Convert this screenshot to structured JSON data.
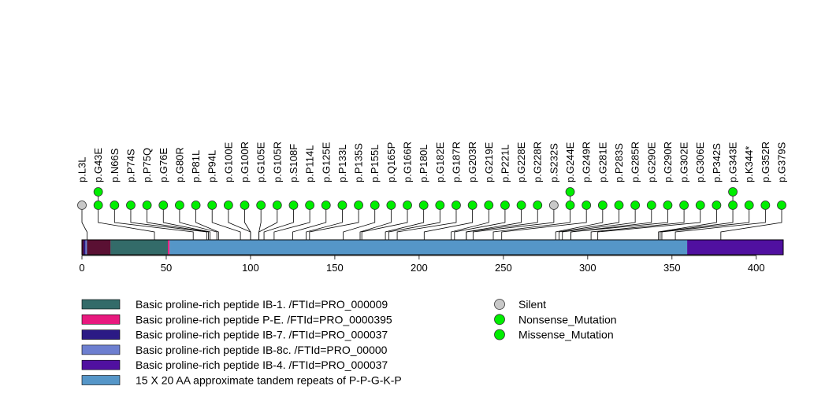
{
  "chart_data": {
    "type": "lollipop",
    "protein_length": 416,
    "axis": {
      "ticks": [
        0,
        50,
        100,
        150,
        200,
        250,
        300,
        350,
        400
      ],
      "xlim": [
        0,
        416
      ]
    },
    "mutation_types": [
      {
        "name": "Silent",
        "color": "#c8c8c8"
      },
      {
        "name": "Nonsense_Mutation",
        "color": "#00ee00"
      },
      {
        "name": "Missense_Mutation",
        "color": "#00ee00"
      }
    ],
    "mutations": [
      {
        "label": "p.L3L",
        "position": 3,
        "type": "Silent",
        "count": 1
      },
      {
        "label": "p.G43E",
        "position": 43,
        "type": "Missense_Mutation",
        "count": 2
      },
      {
        "label": "p.N66S",
        "position": 66,
        "type": "Missense_Mutation",
        "count": 1
      },
      {
        "label": "p.P74S",
        "position": 74,
        "type": "Missense_Mutation",
        "count": 1
      },
      {
        "label": "p.P75Q",
        "position": 75,
        "type": "Missense_Mutation",
        "count": 1
      },
      {
        "label": "p.G76E",
        "position": 76,
        "type": "Missense_Mutation",
        "count": 1
      },
      {
        "label": "p.G80R",
        "position": 80,
        "type": "Missense_Mutation",
        "count": 1
      },
      {
        "label": "p.P81L",
        "position": 81,
        "type": "Missense_Mutation",
        "count": 1
      },
      {
        "label": "p.P94L",
        "position": 94,
        "type": "Missense_Mutation",
        "count": 1
      },
      {
        "label": "p.G100E",
        "position": 100,
        "type": "Missense_Mutation",
        "count": 1
      },
      {
        "label": "p.G100R",
        "position": 100,
        "type": "Missense_Mutation",
        "count": 1
      },
      {
        "label": "p.G105E",
        "position": 105,
        "type": "Missense_Mutation",
        "count": 1
      },
      {
        "label": "p.G105R",
        "position": 105,
        "type": "Missense_Mutation",
        "count": 1
      },
      {
        "label": "p.S108F",
        "position": 108,
        "type": "Missense_Mutation",
        "count": 1
      },
      {
        "label": "p.P114L",
        "position": 114,
        "type": "Missense_Mutation",
        "count": 1
      },
      {
        "label": "p.G125E",
        "position": 125,
        "type": "Missense_Mutation",
        "count": 1
      },
      {
        "label": "p.P133L",
        "position": 133,
        "type": "Missense_Mutation",
        "count": 1
      },
      {
        "label": "p.P135S",
        "position": 135,
        "type": "Missense_Mutation",
        "count": 1
      },
      {
        "label": "p.P155L",
        "position": 155,
        "type": "Missense_Mutation",
        "count": 1
      },
      {
        "label": "p.Q165P",
        "position": 165,
        "type": "Missense_Mutation",
        "count": 1
      },
      {
        "label": "p.G166R",
        "position": 166,
        "type": "Missense_Mutation",
        "count": 1
      },
      {
        "label": "p.P180L",
        "position": 180,
        "type": "Missense_Mutation",
        "count": 1
      },
      {
        "label": "p.G182E",
        "position": 182,
        "type": "Missense_Mutation",
        "count": 1
      },
      {
        "label": "p.G187R",
        "position": 187,
        "type": "Missense_Mutation",
        "count": 1
      },
      {
        "label": "p.G203R",
        "position": 203,
        "type": "Missense_Mutation",
        "count": 1
      },
      {
        "label": "p.G219E",
        "position": 219,
        "type": "Missense_Mutation",
        "count": 1
      },
      {
        "label": "p.P221L",
        "position": 221,
        "type": "Missense_Mutation",
        "count": 1
      },
      {
        "label": "p.G228E",
        "position": 228,
        "type": "Missense_Mutation",
        "count": 1
      },
      {
        "label": "p.G228R",
        "position": 228,
        "type": "Missense_Mutation",
        "count": 1
      },
      {
        "label": "p.S232S",
        "position": 232,
        "type": "Silent",
        "count": 1
      },
      {
        "label": "p.G244E",
        "position": 244,
        "type": "Missense_Mutation",
        "count": 2
      },
      {
        "label": "p.G249R",
        "position": 249,
        "type": "Missense_Mutation",
        "count": 1
      },
      {
        "label": "p.G281E",
        "position": 281,
        "type": "Missense_Mutation",
        "count": 1
      },
      {
        "label": "p.P283S",
        "position": 283,
        "type": "Missense_Mutation",
        "count": 1
      },
      {
        "label": "p.G285R",
        "position": 285,
        "type": "Missense_Mutation",
        "count": 1
      },
      {
        "label": "p.G290E",
        "position": 290,
        "type": "Missense_Mutation",
        "count": 1
      },
      {
        "label": "p.G290R",
        "position": 290,
        "type": "Missense_Mutation",
        "count": 1
      },
      {
        "label": "p.G302E",
        "position": 302,
        "type": "Missense_Mutation",
        "count": 1
      },
      {
        "label": "p.G306E",
        "position": 306,
        "type": "Missense_Mutation",
        "count": 1
      },
      {
        "label": "p.P342S",
        "position": 342,
        "type": "Missense_Mutation",
        "count": 1
      },
      {
        "label": "p.G343E",
        "position": 343,
        "type": "Missense_Mutation",
        "count": 2
      },
      {
        "label": "p.K344*",
        "position": 344,
        "type": "Nonsense_Mutation",
        "count": 1
      },
      {
        "label": "p.G352R",
        "position": 352,
        "type": "Missense_Mutation",
        "count": 1
      },
      {
        "label": "p.G379S",
        "position": 379,
        "type": "Missense_Mutation",
        "count": 1
      }
    ],
    "domains": [
      {
        "name": "Basic proline-rich peptide IB-1. /FTId=PRO_000009",
        "start": 17,
        "end": 51,
        "color": "#336b69"
      },
      {
        "name": "Basic proline-rich peptide P-E. /FTId=PRO_0000395",
        "start": 51,
        "end": 52,
        "color": "#e8197e"
      },
      {
        "name": "Basic proline-rich peptide IB-7. /FTId=PRO_000037",
        "start": 1,
        "end": 2,
        "color": "#2b1a85"
      },
      {
        "name": "Basic proline-rich peptide IB-8c. /FTId=PRO_00000",
        "start": 2,
        "end": 3,
        "color": "#6d7fd0"
      },
      {
        "name": "Basic proline-rich peptide IB-4. /FTId=PRO_000037",
        "start": 359,
        "end": 416,
        "color": "#5010a0"
      },
      {
        "name": "15 X 20 AA approximate tandem repeats of P-P-G-K-P",
        "start": 52,
        "end": 359,
        "color": "#5596c8"
      }
    ],
    "background_segments": [
      {
        "start": 0,
        "end": 17,
        "color": "#5a1033"
      }
    ]
  }
}
